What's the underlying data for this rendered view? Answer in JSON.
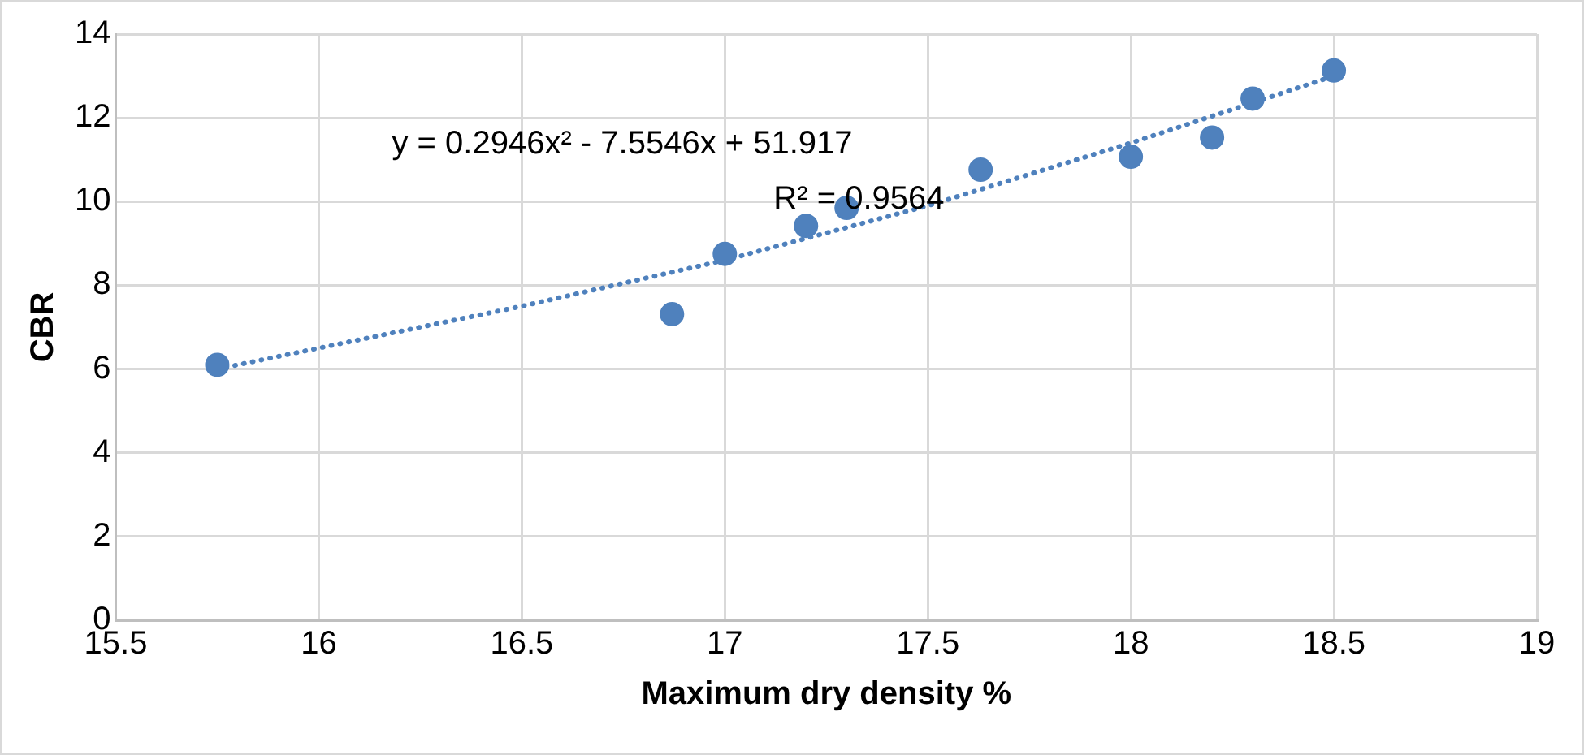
{
  "chart_data": {
    "type": "scatter",
    "xlabel": "Maximum dry density %",
    "ylabel": "CBR",
    "xlim": [
      15.5,
      19
    ],
    "xticks": [
      15.5,
      16,
      16.5,
      17,
      17.5,
      18,
      18.5,
      19
    ],
    "ylim": [
      0,
      14
    ],
    "yticks": [
      0,
      2,
      4,
      6,
      8,
      10,
      12,
      14
    ],
    "grid": true,
    "legend": false,
    "annotations": [
      "y = 0.2946x² - 7.5546x + 51.917",
      "R² = 0.9564"
    ],
    "series": [
      {
        "color": "#4f81bd",
        "marker": "circle",
        "x": [
          15.75,
          16.87,
          17.0,
          17.2,
          17.3,
          17.63,
          18.0,
          18.2,
          18.3,
          18.5
        ],
        "values": [
          6.1,
          7.31,
          8.75,
          9.42,
          9.85,
          10.76,
          11.07,
          11.53,
          12.46,
          13.13
        ]
      },
      {
        "type": "line",
        "color": "#4f81bd",
        "marker": "none",
        "line_style": "dotted",
        "x": [
          15.75,
          16,
          16.5,
          17,
          17.5,
          18,
          18.5
        ],
        "values": [
          6.0,
          6.5,
          7.5,
          8.6,
          9.9,
          11.4,
          13.0
        ]
      }
    ]
  }
}
